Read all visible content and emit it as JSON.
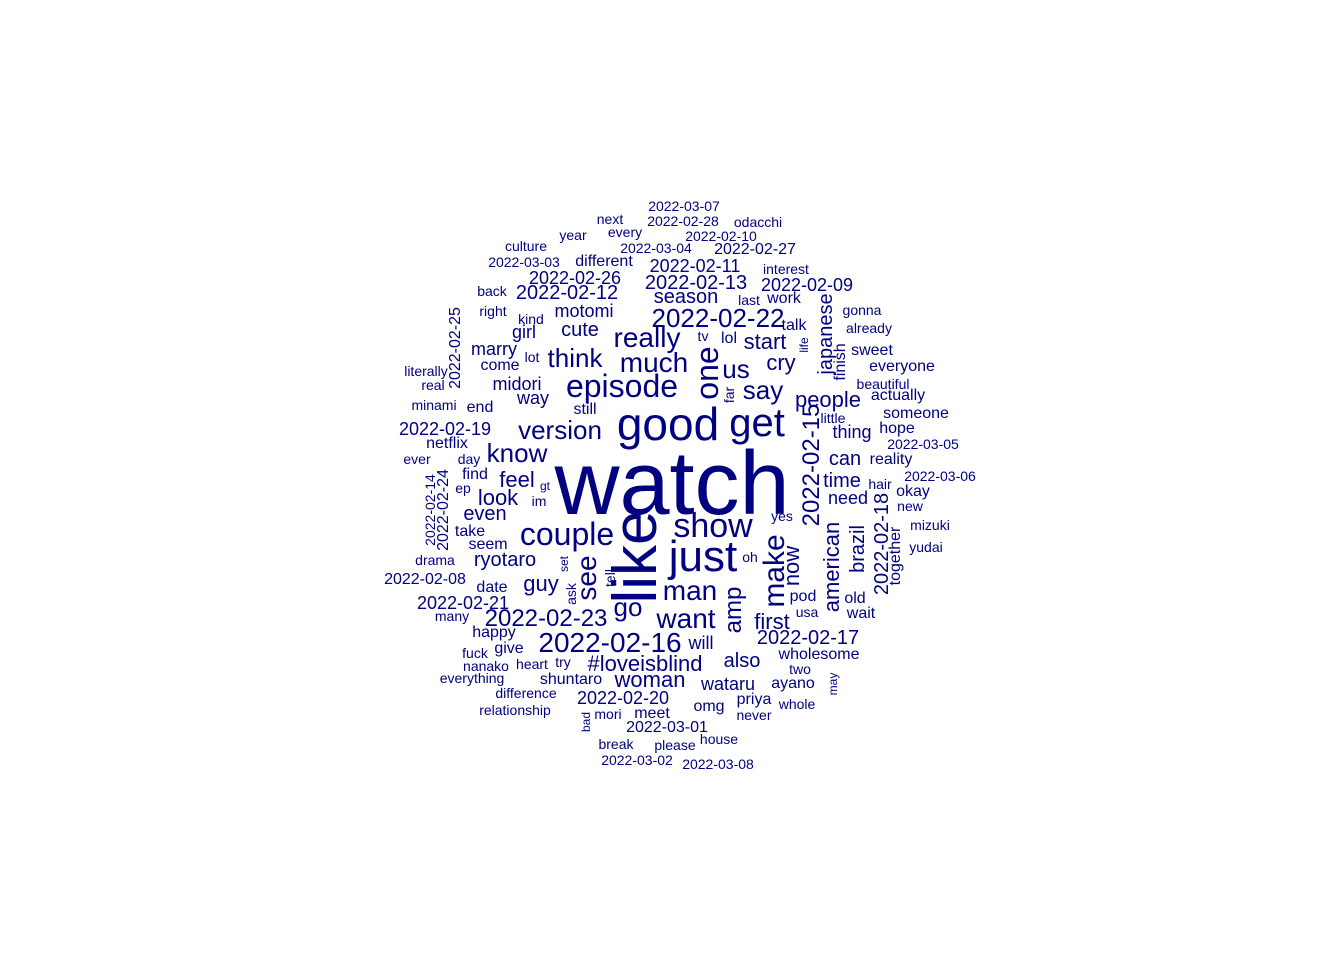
{
  "color": "#000080",
  "words": [
    "watch",
    "like",
    "good",
    "just",
    "get",
    "show",
    "couple",
    "episode",
    "one",
    "make",
    "see",
    "2022-02-16",
    "want",
    "man",
    "really",
    "much",
    "2022-02-22",
    "say",
    "version",
    "think",
    "know",
    "go",
    "us",
    "2022-02-15",
    "2022-02-23",
    "amp",
    "cry",
    "people",
    "feel",
    "start",
    "first",
    "now",
    "#loveisblind",
    "look",
    "american",
    "woman",
    "guy",
    "2022-02-17",
    "also",
    "cute",
    "even",
    "brazil",
    "japanese",
    "2022-02-18",
    "ryotaro",
    "time",
    "season",
    "can",
    "2022-02-13",
    "2022-02-12",
    "2022-02-26",
    "2022-02-20",
    "midori",
    "way",
    "need",
    "motomi",
    "2022-02-19",
    "2022-02-09",
    "2022-02-11",
    "girl",
    "wataru",
    "thing",
    "will",
    "marry",
    "2022-02-21",
    "wholesome",
    "end",
    "date",
    "2022-02-25",
    "2022-02-24",
    "2022-02-14",
    "ayano",
    "omg",
    "finish",
    "together",
    "netflix",
    "find",
    "seem",
    "give",
    "meet",
    "2022-02-27",
    "2022-02-08",
    "pod",
    "shuntaro",
    "priya",
    "different",
    "still",
    "2022-03-01",
    "old",
    "talk",
    "actually",
    "someone",
    "hope",
    "sweet",
    "everyone",
    "hair",
    "okay",
    "wait",
    "tell",
    "2022-03-07",
    "2022-02-28",
    "2022-02-10",
    "every",
    "year",
    "work",
    "interest",
    "lol",
    "reality",
    "happy",
    "come",
    "take",
    "2022-03-05",
    "2022-03-06",
    "2022-03-03",
    "2022-03-04",
    "odacchi",
    "next",
    "culture",
    "gonna",
    "already",
    "beautiful",
    "yes",
    "two",
    "whole",
    "never",
    "2022-03-02",
    "2022-03-08",
    "break",
    "please",
    "house",
    "mori",
    "bad",
    "relationship",
    "difference",
    "everything",
    "nanako",
    "heart",
    "fuck",
    "try",
    "many",
    "drama",
    "ever",
    "day",
    "ep",
    "gt",
    "im",
    "set",
    "ask",
    "oh",
    "usa",
    "may",
    "little",
    "life",
    "far",
    "tv",
    "lot",
    "kind",
    "right",
    "back",
    "last",
    "literally",
    "real",
    "minami",
    "new",
    "mizuki",
    "yudai"
  ]
}
